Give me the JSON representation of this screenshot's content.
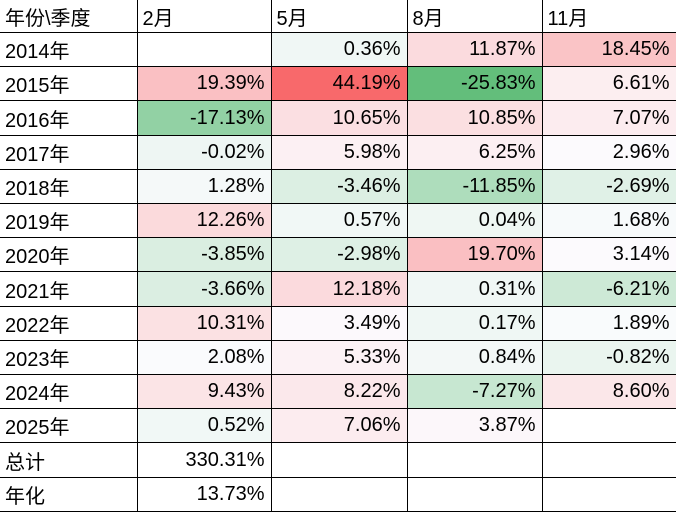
{
  "table": {
    "header": {
      "corner": "年份\\季度",
      "months": [
        "2月",
        "5月",
        "8月",
        "11月"
      ]
    },
    "rows": [
      {
        "label": "2014年",
        "values": [
          "",
          "0.36%",
          "11.87%",
          "18.45%"
        ]
      },
      {
        "label": "2015年",
        "values": [
          "19.39%",
          "44.19%",
          "-25.83%",
          "6.61%"
        ]
      },
      {
        "label": "2016年",
        "values": [
          "-17.13%",
          "10.65%",
          "10.85%",
          "7.07%"
        ]
      },
      {
        "label": "2017年",
        "values": [
          "-0.02%",
          "5.98%",
          "6.25%",
          "2.96%"
        ]
      },
      {
        "label": "2018年",
        "values": [
          "1.28%",
          "-3.46%",
          "-11.85%",
          "-2.69%"
        ]
      },
      {
        "label": "2019年",
        "values": [
          "12.26%",
          "0.57%",
          "0.04%",
          "1.68%"
        ]
      },
      {
        "label": "2020年",
        "values": [
          "-3.85%",
          "-2.98%",
          "19.70%",
          "3.14%"
        ]
      },
      {
        "label": "2021年",
        "values": [
          "-3.66%",
          "12.18%",
          "0.31%",
          "-6.21%"
        ]
      },
      {
        "label": "2022年",
        "values": [
          "10.31%",
          "3.49%",
          "0.17%",
          "1.89%"
        ]
      },
      {
        "label": "2023年",
        "values": [
          "2.08%",
          "5.33%",
          "0.84%",
          "-0.82%"
        ]
      },
      {
        "label": "2024年",
        "values": [
          "9.43%",
          "8.22%",
          "-7.27%",
          "8.60%"
        ]
      },
      {
        "label": "2025年",
        "values": [
          "0.52%",
          "7.06%",
          "3.87%",
          ""
        ]
      }
    ],
    "summary_rows": [
      {
        "label": "总计",
        "values": [
          "330.31%",
          "",
          "",
          ""
        ]
      },
      {
        "label": "年化",
        "values": [
          "13.73%",
          "",
          "",
          ""
        ]
      }
    ],
    "color_scale": {
      "min_value": -25.83,
      "mid_value": 2.52,
      "max_value": 44.19,
      "min_color": "#63BE7B",
      "mid_color": "#FCFCFF",
      "max_color": "#F8696B",
      "empty_color": "#FFFFFF",
      "border_color": "#000000",
      "text_color": "#000000"
    }
  }
}
